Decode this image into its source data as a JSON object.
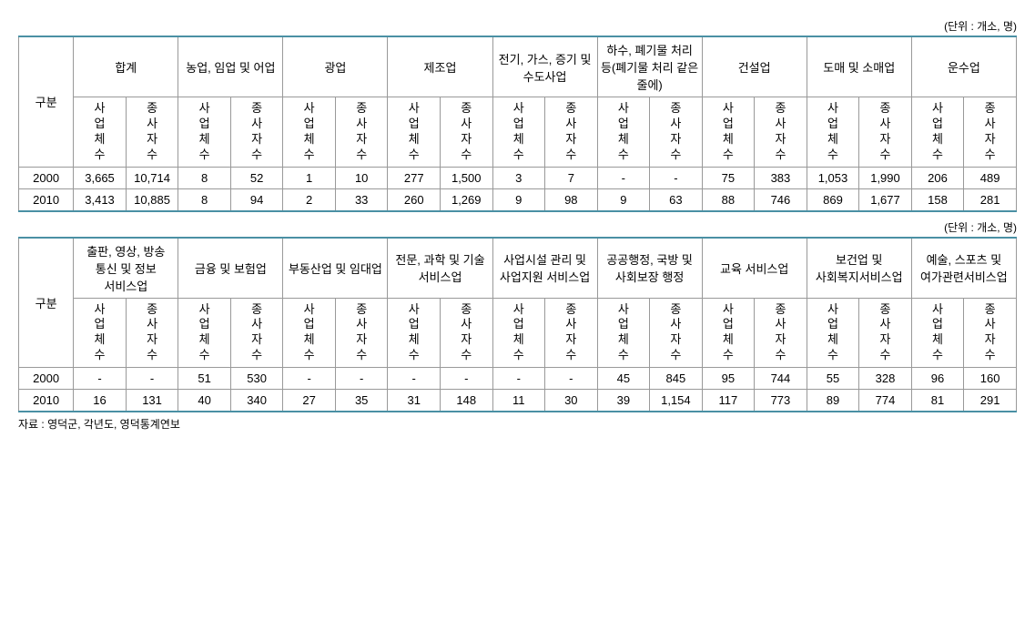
{
  "unit_label": "(단위 : 개소, 명)",
  "row_header": "구분",
  "sub_biz": "사업체수",
  "sub_emp": "종사자수",
  "years": [
    "2000",
    "2010"
  ],
  "table1": {
    "cols": [
      "합계",
      "농업, 임업 및 어업",
      "광업",
      "제조업",
      "전기, 가스, 증기 및 수도사업",
      "하수, 폐기물 처리 등(폐기물 처리 같은 줄에)",
      "건설업",
      "도매 및 소매업",
      "운수업"
    ],
    "rows": [
      [
        "3,665",
        "10,714",
        "8",
        "52",
        "1",
        "10",
        "277",
        "1,500",
        "3",
        "7",
        "-",
        "-",
        "75",
        "383",
        "1,053",
        "1,990",
        "206",
        "489"
      ],
      [
        "3,413",
        "10,885",
        "8",
        "94",
        "2",
        "33",
        "260",
        "1,269",
        "9",
        "98",
        "9",
        "63",
        "88",
        "746",
        "869",
        "1,677",
        "158",
        "281"
      ]
    ]
  },
  "table2": {
    "cols": [
      "출판, 영상, 방송 통신 및 정보 서비스업",
      "금융 및 보험업",
      "부동산업 및 임대업",
      "전문, 과학 및 기술 서비스업",
      "사업시설 관리 및 사업지원 서비스업",
      "공공행정, 국방 및 사회보장 행정",
      "교육 서비스업",
      "보건업 및 사회복지서비스업",
      "예술, 스포츠 및 여가관련서비스업"
    ],
    "rows": [
      [
        "-",
        "-",
        "51",
        "530",
        "-",
        "-",
        "-",
        "-",
        "-",
        "-",
        "45",
        "845",
        "95",
        "744",
        "55",
        "328",
        "96",
        "160"
      ],
      [
        "16",
        "131",
        "40",
        "340",
        "27",
        "35",
        "31",
        "148",
        "11",
        "30",
        "39",
        "1,154",
        "117",
        "773",
        "89",
        "774",
        "81",
        "291"
      ]
    ]
  },
  "source": "자료 : 영덕군, 각년도, 영덕통계연보",
  "styling": {
    "border_color": "#999999",
    "accent_border_color": "#4a90a4",
    "font_size_body": 13,
    "font_size_small": 12,
    "background": "#ffffff",
    "text_color": "#000000"
  }
}
